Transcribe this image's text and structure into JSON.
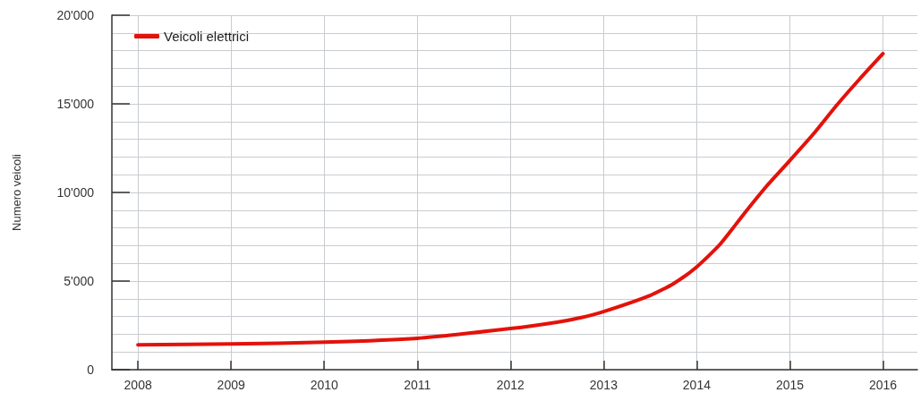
{
  "chart_data": {
    "type": "line",
    "ylabel": "Numero veicoli",
    "x": [
      2008,
      2009,
      2010,
      2011,
      2012,
      2012.5,
      2012.75,
      2013,
      2013.5,
      2013.75,
      2014,
      2014.25,
      2014.5,
      2014.75,
      2015,
      2015.25,
      2015.5,
      2015.75,
      2016
    ],
    "series": [
      {
        "name": "Veicoli elettrici",
        "color": "#e3120b",
        "values": [
          1400,
          1450,
          1550,
          1770,
          2320,
          2680,
          2930,
          3280,
          4190,
          4850,
          5800,
          7070,
          8740,
          10350,
          11800,
          13280,
          14900,
          16400,
          17830
        ]
      }
    ],
    "xlim": [
      2007.72,
      2016.37
    ],
    "xticks": [
      2008,
      2009,
      2010,
      2011,
      2012,
      2013,
      2014,
      2015,
      2016
    ],
    "ylim": [
      0,
      20000
    ],
    "yticks": [
      0,
      {
        "value": 5000,
        "label": "5'000"
      },
      {
        "value": 10000,
        "label": "10'000"
      },
      {
        "value": 15000,
        "label": "15'000"
      },
      {
        "value": 20000,
        "label": "20'000"
      }
    ],
    "grid": true,
    "legend": "top left",
    "marker": "none",
    "line_style": "solid"
  }
}
